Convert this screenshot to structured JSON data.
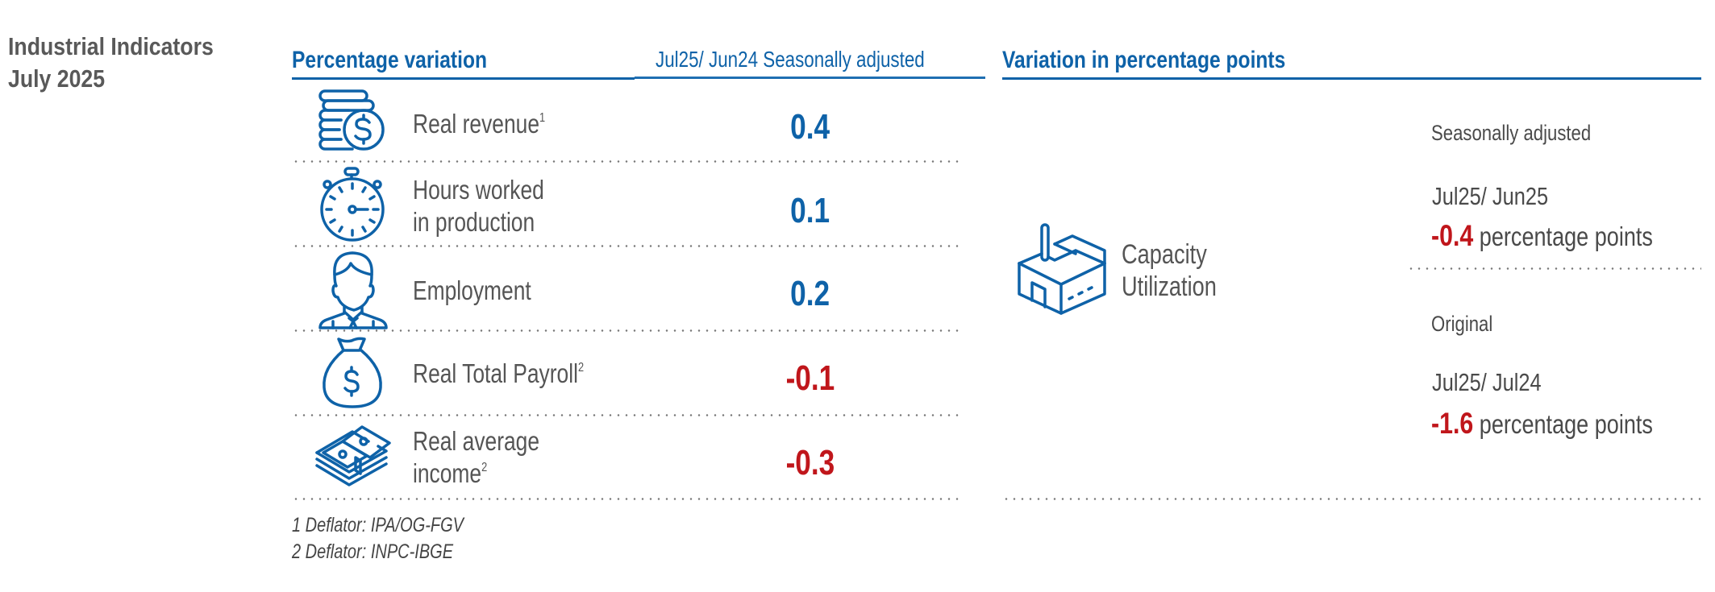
{
  "title": {
    "line1": "Industrial Indicators",
    "line2": "July 2025"
  },
  "left_panel": {
    "heading": "Percentage variation",
    "subheading": "Jul25/ Jun24 Seasonally adjusted",
    "rows": [
      {
        "icon": "coins-dollar-icon",
        "label": "Real revenue",
        "sup": "1",
        "value": "0.4",
        "sign": "positive"
      },
      {
        "icon": "stopwatch-icon",
        "label_line1": "Hours worked",
        "label_line2": "in production",
        "value": "0.1",
        "sign": "positive"
      },
      {
        "icon": "person-icon",
        "label": "Employment",
        "value": "0.2",
        "sign": "positive"
      },
      {
        "icon": "money-bag-icon",
        "label": "Real Total Payroll",
        "sup": "2",
        "value": "-0.1",
        "sign": "negative"
      },
      {
        "icon": "cash-stack-icon",
        "label_line1": "Real average",
        "label_line2": "income",
        "sup": "2",
        "value": "-0.3",
        "sign": "negative"
      }
    ],
    "footnotes": [
      "1 Deflator: IPA/OG-FGV",
      "2 Deflator: INPC-IBGE"
    ]
  },
  "right_panel": {
    "heading": "Variation in percentage points",
    "indicator": {
      "icon": "factory-icon",
      "line1": "Capacity",
      "line2": "Utilization"
    },
    "blocks": [
      {
        "type_label": "Seasonally adjusted",
        "period": "Jul25/ Jun25",
        "value": "-0.4",
        "unit": "percentage points"
      },
      {
        "type_label": "Original",
        "period": "Jul25/ Jul24",
        "value": "-1.6",
        "unit": "percentage points"
      }
    ]
  },
  "colors": {
    "brand_blue": "#0e62a8",
    "negative_red": "#c0161b",
    "text_gray": "#555555"
  }
}
